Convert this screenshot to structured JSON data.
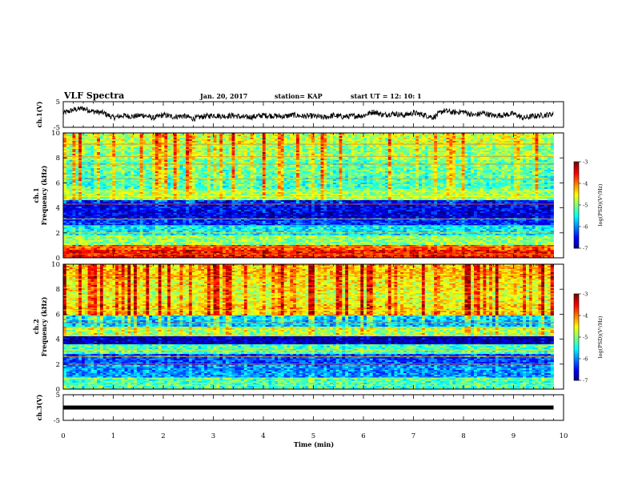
{
  "header": {
    "title": "VLF Spectra",
    "date": "Jan. 20, 2017",
    "station": "station= KAP",
    "start": "start  UT =  12: 10: 1"
  },
  "chart_data": [
    {
      "type": "line",
      "title": "VLF Spectra",
      "ylabel": "ch.1(V)",
      "ylim": [
        -5,
        5
      ],
      "yticks": [
        "5",
        "-5"
      ],
      "x": [
        0.0,
        0.2,
        0.4,
        0.6,
        0.8,
        1.0,
        1.2,
        1.4,
        1.6,
        1.8,
        2.0,
        2.2,
        2.4,
        2.6,
        2.8,
        3.0,
        3.2,
        3.4,
        3.6,
        3.8,
        4.0,
        4.2,
        4.4,
        4.6,
        4.8,
        5.0,
        5.2,
        5.4,
        5.6,
        5.8,
        6.0,
        6.2,
        6.4,
        6.6,
        6.8,
        7.0,
        7.2,
        7.4,
        7.6,
        7.8,
        8.0,
        8.2,
        8.4,
        8.6,
        8.8,
        9.0,
        9.2,
        9.4,
        9.6,
        9.8
      ],
      "values": [
        0.5,
        1.8,
        2.4,
        1.2,
        0.6,
        -1.2,
        -0.4,
        -0.8,
        -0.2,
        -1.4,
        -0.2,
        -0.9,
        -0.5,
        -1.6,
        -0.8,
        -0.3,
        -0.7,
        -0.4,
        -1.1,
        -0.9,
        -0.3,
        -0.5,
        -0.8,
        -0.2,
        -0.7,
        -0.6,
        -1.2,
        -0.4,
        -0.9,
        -0.6,
        -0.4,
        1.1,
        -0.2,
        0.4,
        -0.3,
        0.6,
        -0.1,
        -1.1,
        1.5,
        0.8,
        1.1,
        -0.3,
        0.6,
        -0.5,
        -0.2,
        0.3,
        -1.4,
        -0.6,
        -0.3,
        0.2
      ]
    },
    {
      "type": "heatmap",
      "ylabel": "ch.1\nFrequency (kHz)",
      "ylim": [
        0,
        10
      ],
      "yticks": [
        "0",
        "2",
        "4",
        "6",
        "8",
        "10"
      ],
      "colorbar": {
        "label": "log(PSD)(V²/Hz)",
        "range": [
          -7,
          -3
        ],
        "ticks": [
          "-3",
          "-4",
          "-5",
          "-6",
          "-7"
        ]
      },
      "bands_khz": [
        [
          0.5,
          -3.6
        ],
        [
          0.85,
          -3.9
        ],
        [
          1.3,
          -5.0
        ],
        [
          2.2,
          -5.6
        ],
        [
          2.9,
          -6.4
        ],
        [
          3.4,
          -6.7
        ],
        [
          4.1,
          -6.6
        ],
        [
          5.2,
          -5.0
        ],
        [
          5.9,
          -5.4
        ],
        [
          7.1,
          -5.3
        ],
        [
          8.6,
          -5.1
        ],
        [
          9.5,
          -4.9
        ]
      ]
    },
    {
      "type": "heatmap",
      "ylabel": "ch.2\nFrequency (kHz)",
      "ylim": [
        0,
        10
      ],
      "yticks": [
        "0",
        "2",
        "4",
        "6",
        "8",
        "10"
      ],
      "colorbar": {
        "label": "log(PSD)(V²/Hz)",
        "range": [
          -7,
          -3
        ],
        "ticks": [
          "-3",
          "-4",
          "-5",
          "-6",
          "-7"
        ]
      },
      "bands_khz": [
        [
          0.4,
          -5.3
        ],
        [
          1.5,
          -6.0
        ],
        [
          2.3,
          -6.3
        ],
        [
          3.4,
          -5.3
        ],
        [
          3.9,
          -6.9
        ],
        [
          4.6,
          -5.0
        ],
        [
          5.5,
          -5.9
        ],
        [
          6.2,
          -4.6
        ],
        [
          7.3,
          -4.8
        ],
        [
          8.3,
          -4.7
        ],
        [
          9.3,
          -4.5
        ]
      ]
    },
    {
      "type": "line",
      "ylabel": "ch.3(V)",
      "ylim": [
        -5,
        5
      ],
      "yticks": [
        "5",
        "-5"
      ],
      "x": [
        0,
        9.8
      ],
      "values": [
        0,
        0
      ]
    }
  ],
  "xaxis": {
    "label": "Time (min)",
    "ticks": [
      "0",
      "1",
      "2",
      "3",
      "4",
      "5",
      "6",
      "7",
      "8",
      "9",
      "10"
    ],
    "xlim": [
      0,
      10
    ]
  },
  "colors": {
    "jet": [
      "#00008f",
      "#0000ff",
      "#00ffff",
      "#ffff00",
      "#ff0000",
      "#800000"
    ]
  }
}
